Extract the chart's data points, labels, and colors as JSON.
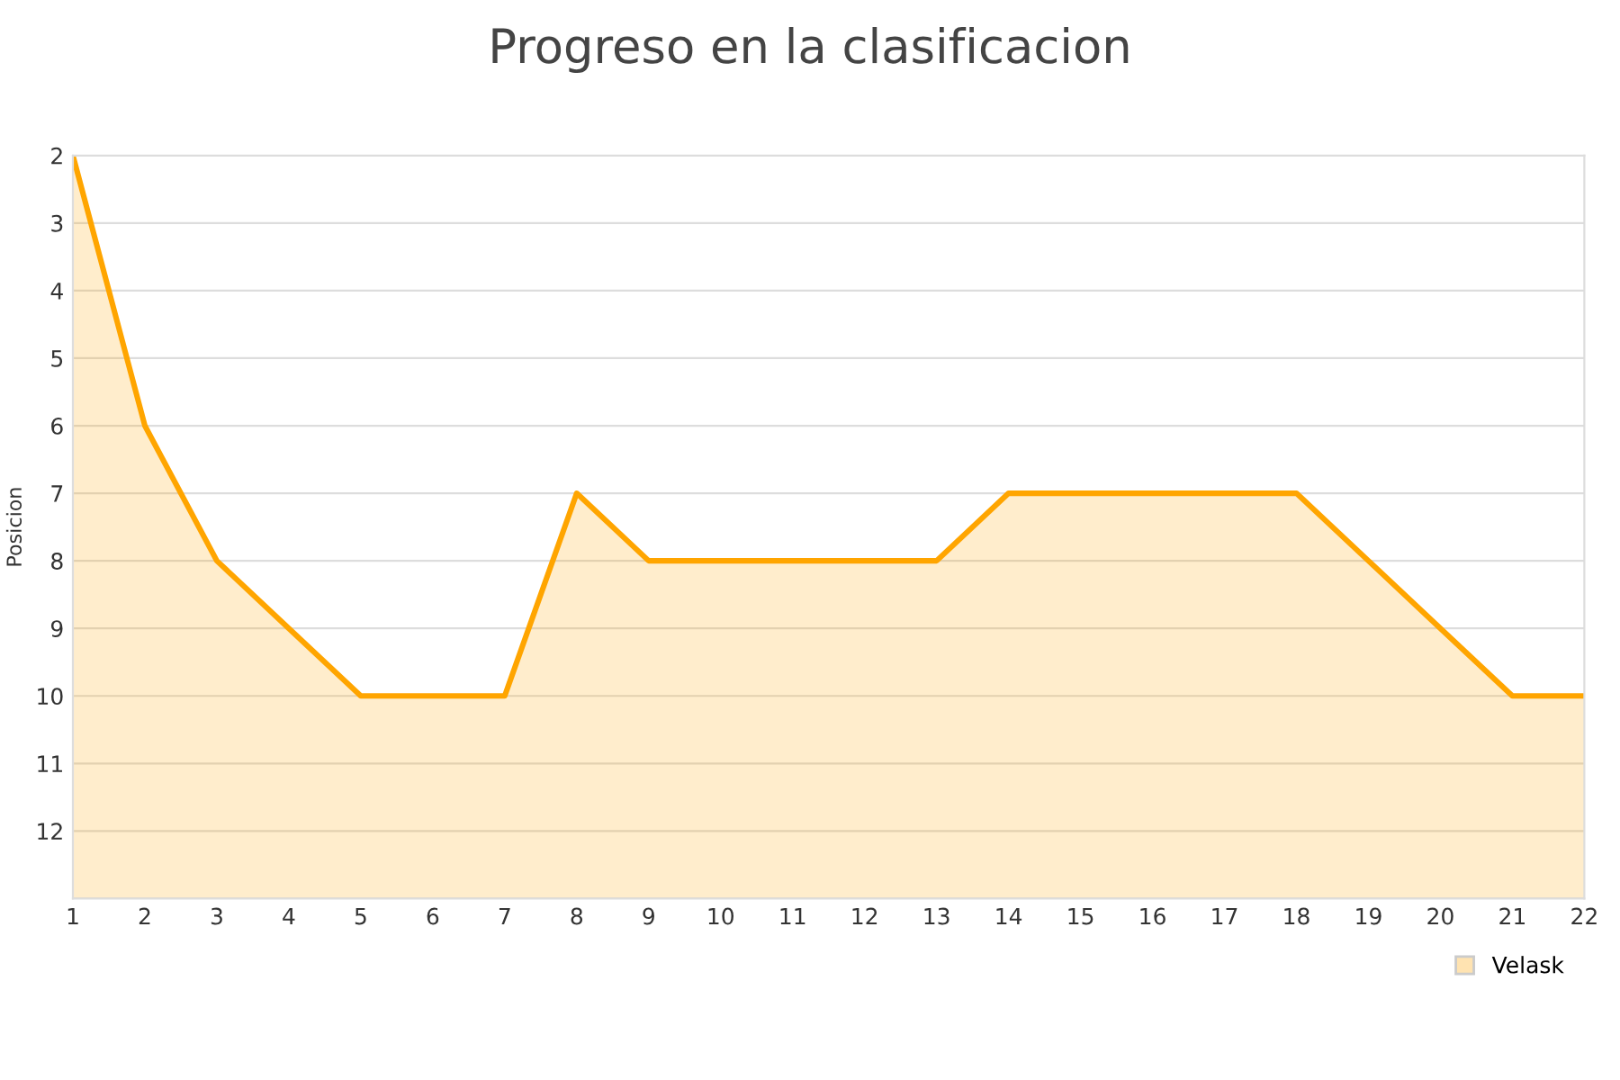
{
  "chart_data": {
    "type": "area",
    "title": "Progreso en la clasificacion",
    "ylabel": "Posicion",
    "x": [
      1,
      2,
      3,
      4,
      5,
      6,
      7,
      8,
      9,
      10,
      11,
      12,
      13,
      14,
      15,
      16,
      17,
      18,
      19,
      20,
      21,
      22
    ],
    "series": [
      {
        "name": "Velask",
        "color": "#ffa500",
        "values": [
          2,
          6,
          8,
          9,
          10,
          10,
          10,
          7,
          8,
          8,
          8,
          8,
          8,
          7,
          7,
          7,
          7,
          7,
          8,
          9,
          10,
          10
        ]
      }
    ],
    "xlim": [
      1,
      22
    ],
    "xticks": [
      1,
      2,
      3,
      4,
      5,
      6,
      7,
      8,
      9,
      10,
      11,
      12,
      13,
      14,
      15,
      16,
      17,
      18,
      19,
      20,
      21,
      22
    ],
    "ylim": [
      13,
      2
    ],
    "yticks": [
      2,
      3,
      4,
      5,
      6,
      7,
      8,
      9,
      10,
      11,
      12,
      {
        "value": 13,
        "label": null
      }
    ],
    "grid": "y",
    "legend": "bottom right",
    "marker": "none",
    "line_style": "solid"
  }
}
